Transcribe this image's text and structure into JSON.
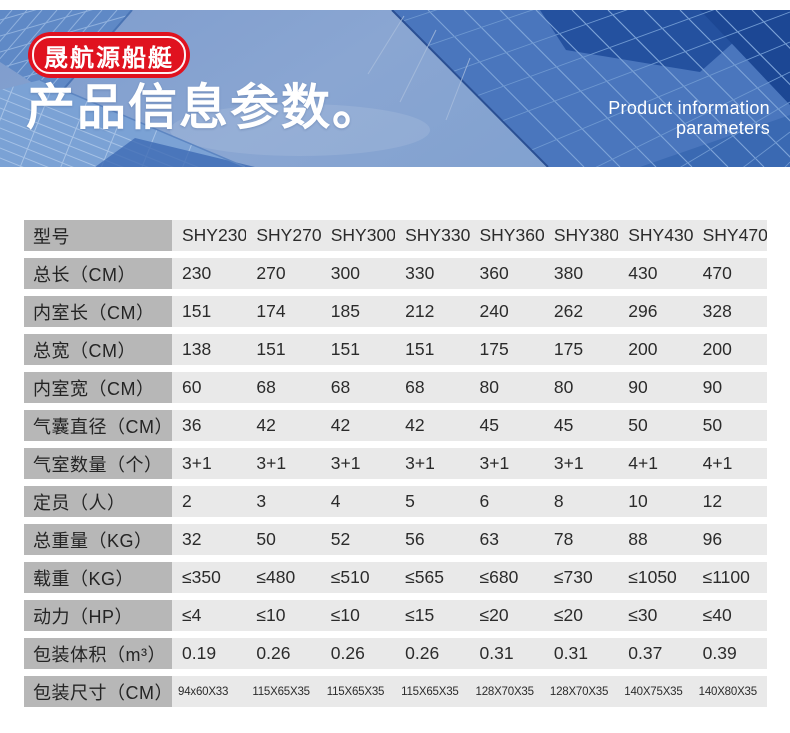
{
  "hero": {
    "badge_label": "晟航源船艇",
    "title": "产品信息参数。",
    "subtitle_lines": [
      "Product information",
      "parameters"
    ]
  },
  "colors": {
    "badge_red": "#e0121f",
    "title_white": "#ffffff",
    "label_cell_bg": "#b7b7b7",
    "value_cell_bg": "#e9e9e9",
    "cell_text": "#2b2b2b",
    "sky_blue": "#84a2cf",
    "building_blue": "#5f89c6",
    "canopy_blue": "#4a76bd",
    "canopy_dark": "#1c4794"
  },
  "table": {
    "rows": [
      {
        "label": "型号",
        "values": [
          "SHY230",
          "SHY270",
          "SHY300",
          "SHY330",
          "SHY360",
          "SHY380",
          "SHY430",
          "SHY470"
        ],
        "header": true
      },
      {
        "label": "总长（CM）",
        "values": [
          "230",
          "270",
          "300",
          "330",
          "360",
          "380",
          "430",
          "470"
        ]
      },
      {
        "label": "内室长（CM）",
        "values": [
          "151",
          "174",
          "185",
          "212",
          "240",
          "262",
          "296",
          "328"
        ]
      },
      {
        "label": "总宽（CM）",
        "values": [
          "138",
          "151",
          "151",
          "151",
          "175",
          "175",
          "200",
          "200"
        ]
      },
      {
        "label": "内室宽（CM）",
        "values": [
          "60",
          "68",
          "68",
          "68",
          "80",
          "80",
          "90",
          "90"
        ]
      },
      {
        "label": "气囊直径（CM）",
        "values": [
          "36",
          "42",
          "42",
          "42",
          "45",
          "45",
          "50",
          "50"
        ]
      },
      {
        "label": "气室数量（个）",
        "values": [
          "3+1",
          "3+1",
          "3+1",
          "3+1",
          "3+1",
          "3+1",
          "4+1",
          "4+1"
        ]
      },
      {
        "label": "定员（人）",
        "values": [
          "2",
          "3",
          "4",
          "5",
          "6",
          "8",
          "10",
          "12"
        ]
      },
      {
        "label": "总重量（KG）",
        "values": [
          "32",
          "50",
          "52",
          "56",
          "63",
          "78",
          "88",
          "96"
        ]
      },
      {
        "label": "载重（KG）",
        "values": [
          "≤350",
          "≤480",
          "≤510",
          "≤565",
          "≤680",
          "≤730",
          "≤1050",
          "≤1100"
        ]
      },
      {
        "label": "动力（HP）",
        "values": [
          "≤4",
          "≤10",
          "≤10",
          "≤15",
          "≤20",
          "≤20",
          "≤30",
          "≤40"
        ]
      },
      {
        "label": "包装体积（m³）",
        "values": [
          "0.19",
          "0.26",
          "0.26",
          "0.26",
          "0.31",
          "0.31",
          "0.37",
          "0.39"
        ]
      },
      {
        "label": "包装尺寸（CM）",
        "values": [
          "94x60X33",
          "115X65X35",
          "115X65X35",
          "115X65X35",
          "128X70X35",
          "128X70X35",
          "140X75X35",
          "140X80X35"
        ],
        "small": true
      }
    ]
  }
}
